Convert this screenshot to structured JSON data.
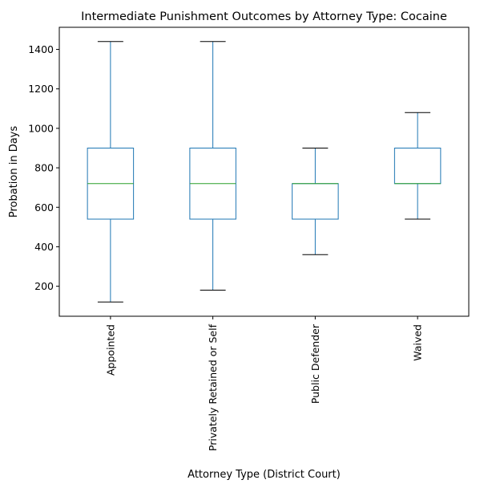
{
  "chart_data": {
    "type": "box",
    "title": "Intermediate Punishment Outcomes by Attorney Type: Cocaine",
    "xlabel": "Attorney Type (District Court)",
    "ylabel": "Probation in Days",
    "ylim": [
      48,
      1512
    ],
    "yticks": [
      200,
      400,
      600,
      800,
      1000,
      1200,
      1400
    ],
    "grid": false,
    "categories": [
      "Appointed",
      "Privately Retained or Self",
      "Public Defender",
      "Waived"
    ],
    "boxes": [
      {
        "category": "Appointed",
        "whisker_low": 120,
        "q1": 540,
        "median": 720,
        "q3": 900,
        "whisker_high": 1440
      },
      {
        "category": "Privately Retained or Self",
        "whisker_low": 180,
        "q1": 540,
        "median": 720,
        "q3": 900,
        "whisker_high": 1440
      },
      {
        "category": "Public Defender",
        "whisker_low": 360,
        "q1": 540,
        "median": 720,
        "q3": 720,
        "whisker_high": 900
      },
      {
        "category": "Waived",
        "whisker_low": 540,
        "q1": 720,
        "median": 720,
        "q3": 900,
        "whisker_high": 1080
      }
    ],
    "colors": {
      "box": "#1f77b4",
      "median": "#2ca02c",
      "cap": "#000000"
    }
  }
}
